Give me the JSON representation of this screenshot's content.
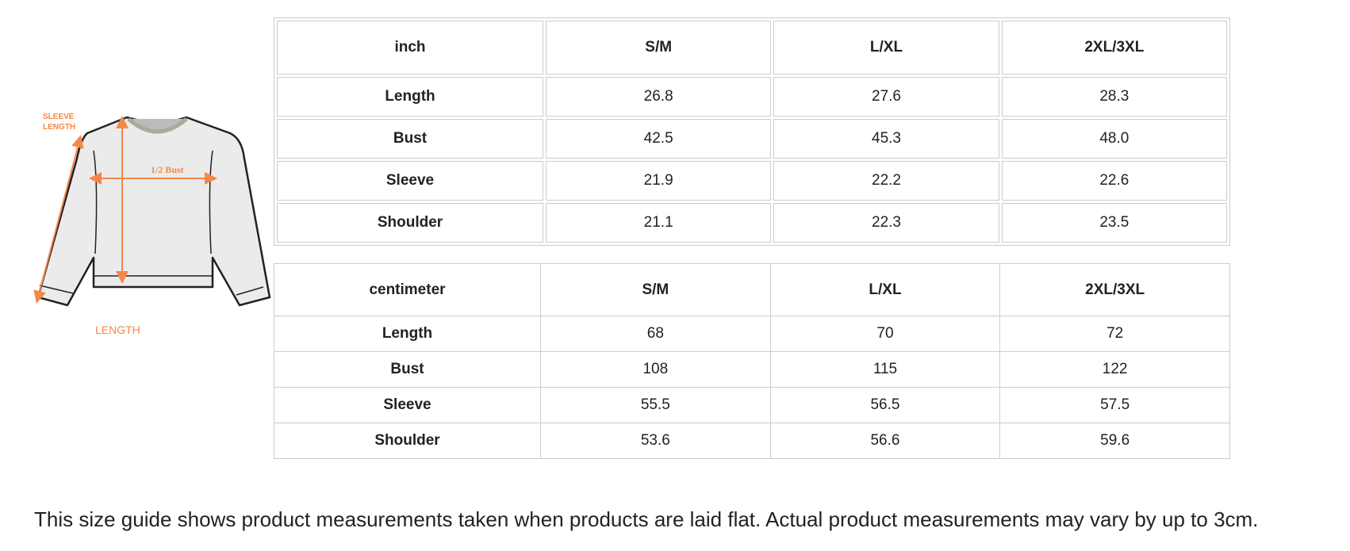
{
  "diagram": {
    "labels": {
      "sleeve_length_1": "SLEEVE",
      "sleeve_length_2": "LENGTH",
      "half_bust": "1/2 Bust",
      "length": "LENGTH"
    },
    "accent": "#f5874a"
  },
  "inch_table": {
    "headers": [
      "inch",
      "S/M",
      "L/XL",
      "2XL/3XL"
    ],
    "rows": [
      [
        "Length",
        "26.8",
        "27.6",
        "28.3"
      ],
      [
        "Bust",
        "42.5",
        "45.3",
        "48.0"
      ],
      [
        "Sleeve",
        "21.9",
        "22.2",
        "22.6"
      ],
      [
        "Shoulder",
        "21.1",
        "22.3",
        "23.5"
      ]
    ]
  },
  "cm_table": {
    "headers": [
      "centimeter",
      "S/M",
      "L/XL",
      "2XL/3XL"
    ],
    "rows": [
      [
        "Length",
        "68",
        "70",
        "72"
      ],
      [
        "Bust",
        "108",
        "115",
        "122"
      ],
      [
        "Sleeve",
        "55.5",
        "56.5",
        "57.5"
      ],
      [
        "Shoulder",
        "53.6",
        "56.6",
        "59.6"
      ]
    ]
  },
  "note": "This size guide shows product measurements taken when products are laid flat. Actual product measurements may vary by up to 3cm."
}
